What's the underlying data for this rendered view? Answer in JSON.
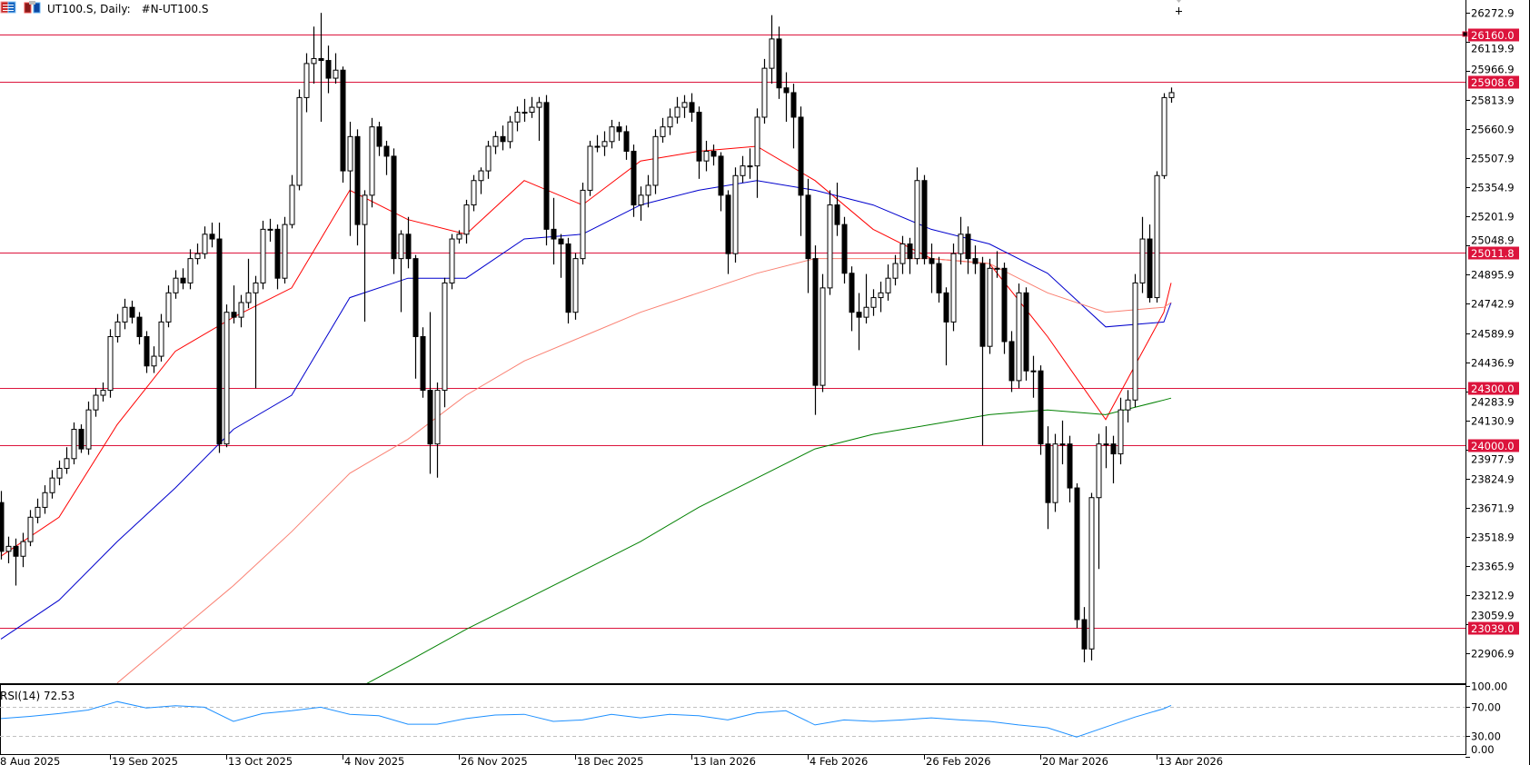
{
  "header": {
    "symbol_title": "UT100.S, Daily:",
    "symbol_desc": "#N-UT100.S",
    "icons": [
      "one-click-trading-icon",
      "chart-trade-icon"
    ]
  },
  "chart_data": {
    "type": "candlestick",
    "timeframe": "Daily",
    "colors": {
      "level": "#dc143c",
      "up_body": "#ffffff",
      "down_body": "#000000",
      "rsi": "#1e90ff",
      "rsi_levels": "#c0c0c0"
    },
    "price_axis": {
      "ticks": [
        "26272.9",
        "26119.9",
        "25966.9",
        "25813.9",
        "25660.9",
        "25507.9",
        "25354.9",
        "25201.9",
        "25048.9",
        "24895.9",
        "24742.9",
        "24589.9",
        "24436.9",
        "24283.9",
        "24130.9",
        "23977.9",
        "23824.9",
        "23671.9",
        "23518.9",
        "23365.9",
        "23212.9",
        "23059.9",
        "22906.9"
      ]
    },
    "x_tick_labels": [
      "8 Aug 2025",
      "19 Sep 2025",
      "13 Oct 2025",
      "4 Nov 2025",
      "26 Nov 2025",
      "18 Dec 2025",
      "13 Jan 2026",
      "4 Feb 2026",
      "26 Feb 2026",
      "20 Mar 2026",
      "13 Apr 2026"
    ],
    "horizontal_levels": [
      {
        "price": 26160.0,
        "label": "26160.0"
      },
      {
        "price": 25908.6,
        "label": "25908.6"
      },
      {
        "price": 25011.8,
        "label": "25011.8"
      },
      {
        "price": 24300.0,
        "label": "24300.0"
      },
      {
        "price": 24000.0,
        "label": "24000.0"
      },
      {
        "price": 23039.0,
        "label": "23039.0"
      }
    ],
    "ohlc": [
      [
        23699,
        23760,
        23400,
        23443
      ],
      [
        23443,
        23520,
        23380,
        23469
      ],
      [
        23469,
        23510,
        23263,
        23417
      ],
      [
        23417,
        23540,
        23360,
        23494
      ],
      [
        23494,
        23660,
        23470,
        23622
      ],
      [
        23622,
        23720,
        23590,
        23674
      ],
      [
        23674,
        23790,
        23640,
        23751
      ],
      [
        23751,
        23870,
        23720,
        23828
      ],
      [
        23828,
        23920,
        23790,
        23879
      ],
      [
        23879,
        23990,
        23850,
        23930
      ],
      [
        23930,
        24120,
        23900,
        24084
      ],
      [
        24084,
        24110,
        23960,
        23981
      ],
      [
        23981,
        24230,
        23950,
        24186
      ],
      [
        24186,
        24300,
        24150,
        24263
      ],
      [
        24263,
        24330,
        24230,
        24289
      ],
      [
        24289,
        24610,
        24250,
        24571
      ],
      [
        24571,
        24690,
        24540,
        24648
      ],
      [
        24648,
        24770,
        24610,
        24725
      ],
      [
        24725,
        24760,
        24640,
        24673
      ],
      [
        24673,
        24700,
        24530,
        24571
      ],
      [
        24571,
        24600,
        24380,
        24417
      ],
      [
        24417,
        24520,
        24380,
        24468
      ],
      [
        24468,
        24690,
        24440,
        24648
      ],
      [
        24648,
        24840,
        24620,
        24801
      ],
      [
        24801,
        24920,
        24770,
        24878
      ],
      [
        24878,
        24930,
        24820,
        24853
      ],
      [
        24853,
        25030,
        24820,
        24981
      ],
      [
        24981,
        25060,
        24950,
        25007
      ],
      [
        25007,
        25150,
        24980,
        25109
      ],
      [
        25109,
        25170,
        25040,
        25084
      ],
      [
        25084,
        25170,
        23960,
        24007
      ],
      [
        24007,
        24740,
        23990,
        24699
      ],
      [
        24699,
        24840,
        24640,
        24673
      ],
      [
        24673,
        24790,
        24620,
        24750
      ],
      [
        24750,
        24980,
        24720,
        24801
      ],
      [
        24801,
        24890,
        24300,
        24853
      ],
      [
        24853,
        25180,
        24820,
        25135
      ],
      [
        25135,
        25190,
        25070,
        25135
      ],
      [
        25135,
        25160,
        24820,
        24878
      ],
      [
        24878,
        25200,
        24850,
        25160
      ],
      [
        25160,
        25420,
        25140,
        25366
      ],
      [
        25366,
        25870,
        25340,
        25827
      ],
      [
        25827,
        26060,
        25750,
        26006
      ],
      [
        26006,
        26200,
        25900,
        26032
      ],
      [
        26032,
        26272,
        25700,
        26022
      ],
      [
        26022,
        26100,
        25850,
        25929
      ],
      [
        25929,
        26060,
        25900,
        25971
      ],
      [
        25971,
        25990,
        25380,
        25442
      ],
      [
        25442,
        25700,
        25100,
        25622
      ],
      [
        25622,
        25660,
        25050,
        25160
      ],
      [
        25160,
        25340,
        24650,
        25314
      ],
      [
        25314,
        25720,
        25250,
        25673
      ],
      [
        25673,
        25700,
        25520,
        25571
      ],
      [
        25571,
        25600,
        25420,
        25519
      ],
      [
        25519,
        25560,
        24900,
        24981
      ],
      [
        24981,
        25130,
        24700,
        25109
      ],
      [
        25109,
        25200,
        24930,
        24981
      ],
      [
        24981,
        25000,
        24350,
        24571
      ],
      [
        24571,
        24620,
        24250,
        24289
      ],
      [
        24289,
        24700,
        23850,
        24007
      ],
      [
        24007,
        24330,
        23830,
        24289
      ],
      [
        24289,
        24880,
        24200,
        24853
      ],
      [
        24853,
        25110,
        24820,
        25084
      ],
      [
        25084,
        25130,
        25060,
        25109
      ],
      [
        25109,
        25290,
        25060,
        25263
      ],
      [
        25263,
        25420,
        25230,
        25391
      ],
      [
        25391,
        25460,
        25320,
        25442
      ],
      [
        25442,
        25600,
        25400,
        25571
      ],
      [
        25571,
        25650,
        25530,
        25622
      ],
      [
        25622,
        25680,
        25550,
        25596
      ],
      [
        25596,
        25730,
        25560,
        25699
      ],
      [
        25699,
        25780,
        25650,
        25750
      ],
      [
        25750,
        25820,
        25700,
        25750
      ],
      [
        25750,
        25830,
        25720,
        25776
      ],
      [
        25776,
        25830,
        25600,
        25801
      ],
      [
        25801,
        25840,
        25050,
        25135
      ],
      [
        25135,
        25300,
        24950,
        25084
      ],
      [
        25084,
        25110,
        24880,
        25058
      ],
      [
        25058,
        25090,
        24640,
        24699
      ],
      [
        24699,
        25010,
        24660,
        24981
      ],
      [
        24981,
        25380,
        24950,
        25340
      ],
      [
        25340,
        25600,
        25310,
        25571
      ],
      [
        25571,
        25630,
        25540,
        25571
      ],
      [
        25571,
        25650,
        25520,
        25596
      ],
      [
        25596,
        25710,
        25560,
        25673
      ],
      [
        25673,
        25700,
        25600,
        25648
      ],
      [
        25648,
        25680,
        25500,
        25545
      ],
      [
        25545,
        25580,
        25200,
        25263
      ],
      [
        25263,
        25360,
        25180,
        25314
      ],
      [
        25314,
        25420,
        25250,
        25366
      ],
      [
        25366,
        25660,
        25320,
        25622
      ],
      [
        25622,
        25720,
        25590,
        25673
      ],
      [
        25673,
        25770,
        25630,
        25724
      ],
      [
        25724,
        25830,
        25690,
        25776
      ],
      [
        25776,
        25840,
        25720,
        25801
      ],
      [
        25801,
        25850,
        25700,
        25750
      ],
      [
        25750,
        25780,
        25400,
        25494
      ],
      [
        25494,
        25600,
        25440,
        25545
      ],
      [
        25545,
        25580,
        25470,
        25519
      ],
      [
        25519,
        25540,
        25230,
        25314
      ],
      [
        25314,
        25340,
        24900,
        25007
      ],
      [
        25007,
        25460,
        24960,
        25417
      ],
      [
        25417,
        25520,
        25380,
        25468
      ],
      [
        25468,
        25560,
        25400,
        25468
      ],
      [
        25468,
        25770,
        25300,
        25724
      ],
      [
        25724,
        26030,
        25690,
        25981
      ],
      [
        25981,
        26260,
        25900,
        26135
      ],
      [
        26135,
        26200,
        25820,
        25878
      ],
      [
        25878,
        25960,
        25700,
        25853
      ],
      [
        25853,
        25900,
        25560,
        25724
      ],
      [
        25724,
        25780,
        25100,
        25314
      ],
      [
        25314,
        25400,
        24800,
        24981
      ],
      [
        24981,
        25050,
        24160,
        24315
      ],
      [
        24315,
        24900,
        24280,
        24827
      ],
      [
        24827,
        25340,
        24790,
        25263
      ],
      [
        25263,
        25380,
        25100,
        25160
      ],
      [
        25160,
        25200,
        24850,
        24904
      ],
      [
        24904,
        24940,
        24600,
        24699
      ],
      [
        24699,
        24800,
        24500,
        24673
      ],
      [
        24673,
        24900,
        24640,
        24725
      ],
      [
        24725,
        24820,
        24680,
        24776
      ],
      [
        24776,
        24860,
        24700,
        24801
      ],
      [
        24801,
        24950,
        24760,
        24878
      ],
      [
        24878,
        25000,
        24840,
        24955
      ],
      [
        24955,
        25100,
        24900,
        25058
      ],
      [
        25058,
        25090,
        24900,
        24981
      ],
      [
        24981,
        25460,
        24950,
        25391
      ],
      [
        25391,
        25420,
        24950,
        24981
      ],
      [
        24981,
        25060,
        24800,
        24955
      ],
      [
        24955,
        24990,
        24750,
        24801
      ],
      [
        24801,
        24830,
        24420,
        24648
      ],
      [
        24648,
        25060,
        24600,
        25007
      ],
      [
        25007,
        25200,
        24950,
        25109
      ],
      [
        25109,
        25150,
        24900,
        24981
      ],
      [
        24981,
        25050,
        24900,
        24955
      ],
      [
        24955,
        24990,
        24000,
        24520
      ],
      [
        24520,
        24980,
        24480,
        24930
      ],
      [
        24930,
        25020,
        24880,
        24930
      ],
      [
        24930,
        24960,
        24480,
        24545
      ],
      [
        24545,
        24600,
        24280,
        24340
      ],
      [
        24340,
        24850,
        24300,
        24801
      ],
      [
        24801,
        24830,
        24340,
        24391
      ],
      [
        24391,
        24470,
        24250,
        24391
      ],
      [
        24391,
        24420,
        23950,
        24007
      ],
      [
        24007,
        24100,
        23560,
        23699
      ],
      [
        23699,
        24060,
        23650,
        24007
      ],
      [
        24007,
        24130,
        23900,
        24007
      ],
      [
        24007,
        24050,
        23700,
        23776
      ],
      [
        23776,
        23800,
        23040,
        23084
      ],
      [
        23084,
        23150,
        22860,
        22930
      ],
      [
        22930,
        23750,
        22870,
        23725
      ],
      [
        23725,
        24060,
        23350,
        24007
      ],
      [
        24007,
        24100,
        23880,
        24007
      ],
      [
        24007,
        24050,
        23800,
        23955
      ],
      [
        23955,
        24250,
        23900,
        24186
      ],
      [
        24186,
        24290,
        24120,
        24238
      ],
      [
        24238,
        24900,
        24200,
        24853
      ],
      [
        24853,
        25200,
        24800,
        25084
      ],
      [
        25084,
        25160,
        24750,
        24776
      ],
      [
        24776,
        25440,
        24750,
        25417
      ],
      [
        25417,
        25850,
        25400,
        25827
      ],
      [
        25827,
        25880,
        25800,
        25853
      ]
    ],
    "moving_averages": [
      {
        "color": "#ff0000",
        "values": [
          23417,
          23622,
          24109,
          24494,
          24673,
          24827,
          25340,
          25186,
          25109,
          25391,
          25263,
          25494,
          25545,
          25571,
          25391,
          25135,
          24981,
          24955,
          24571,
          24135,
          24699,
          24853
        ]
      },
      {
        "color": "#0000cd",
        "values": [
          22982,
          23186,
          23494,
          23776,
          24084,
          24263,
          24776,
          24878,
          24878,
          25084,
          25109,
          25263,
          25340,
          25391,
          25340,
          25263,
          25135,
          25058,
          24904,
          24622,
          24648,
          24750
        ]
      },
      {
        "color": "#fa8072",
        "values": [
          null,
          null,
          22751,
          23007,
          23263,
          23546,
          23853,
          24032,
          24263,
          24443,
          24571,
          24699,
          24801,
          24904,
          24981,
          24981,
          24981,
          24955,
          24801,
          24699,
          24725,
          24750
        ]
      },
      {
        "color": "#008000",
        "values": [
          null,
          null,
          null,
          null,
          null,
          null,
          22700,
          22864,
          23033,
          23186,
          23340,
          23494,
          23674,
          23828,
          23981,
          24058,
          24109,
          24161,
          24186,
          24161,
          24238,
          24248
        ]
      }
    ],
    "rsi": {
      "label": "RSI(14) 72.53",
      "ticks": [
        "100.00",
        "70.00",
        "30.00",
        "0.00"
      ],
      "levels": [
        70,
        30
      ],
      "range": [
        0,
        100
      ],
      "values": [
        54,
        57,
        61,
        66,
        78,
        69,
        72,
        70,
        50,
        61,
        65,
        70,
        60,
        58,
        46,
        46,
        54,
        59,
        60,
        50,
        52,
        60,
        55,
        60,
        58,
        52,
        62,
        65,
        45,
        52,
        50,
        52,
        55,
        52,
        50,
        45,
        41,
        28,
        42,
        56,
        68,
        72.53
      ]
    }
  }
}
